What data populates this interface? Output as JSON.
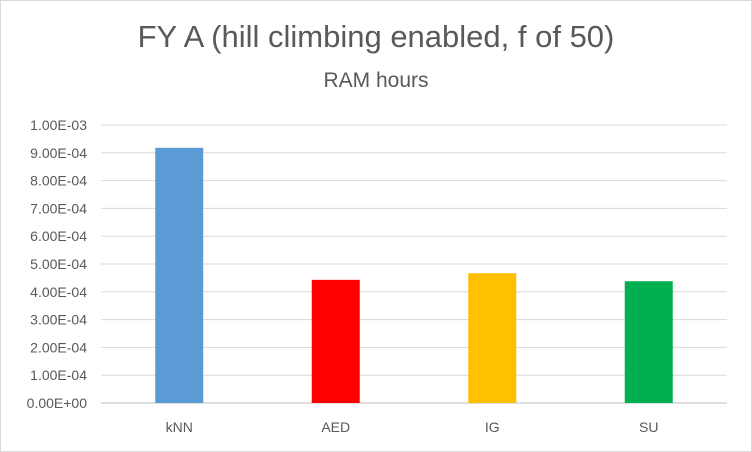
{
  "chart_data": {
    "type": "bar",
    "title": "FY A (hill climbing enabled, f of 50)",
    "subtitle": "RAM hours",
    "xlabel": "",
    "ylabel": "",
    "categories": [
      "kNN",
      "AED",
      "IG",
      "SU"
    ],
    "values": [
      0.000918,
      0.000443,
      0.000467,
      0.000438
    ],
    "colors": [
      "#5B9BD5",
      "#FF0000",
      "#FFC000",
      "#00B050"
    ],
    "ylim": [
      0,
      0.001
    ],
    "yticks": [
      "0.00E+00",
      "1.00E-04",
      "2.00E-04",
      "3.00E-04",
      "4.00E-04",
      "5.00E-04",
      "6.00E-04",
      "7.00E-04",
      "8.00E-04",
      "9.00E-04",
      "1.00E-03"
    ],
    "grid": true,
    "legend": "none"
  }
}
